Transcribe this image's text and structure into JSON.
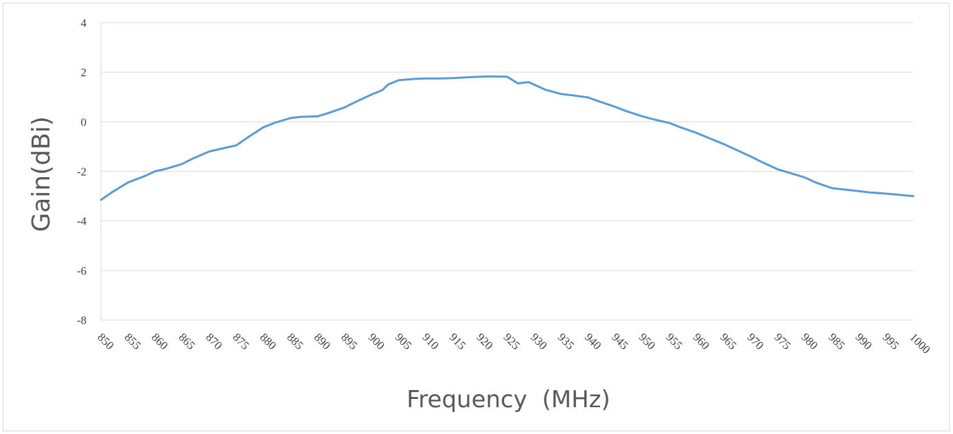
{
  "chart_data": {
    "type": "line",
    "title": "",
    "xlabel": "Frequency  (MHz)",
    "ylabel": "Gain(dBi)",
    "xlim": [
      850,
      1000
    ],
    "ylim": [
      -8,
      4
    ],
    "y_ticks": [
      "4",
      "2",
      "0",
      "-2",
      "-4",
      "-6",
      "-8"
    ],
    "y_tick_values": [
      4,
      2,
      0,
      -2,
      -4,
      -6,
      -8
    ],
    "x_ticks": [
      "850",
      "855",
      "860",
      "865",
      "870",
      "875",
      "880",
      "885",
      "890",
      "895",
      "900",
      "905",
      "910",
      "915",
      "920",
      "925",
      "930",
      "935",
      "940",
      "945",
      "950",
      "955",
      "960",
      "965",
      "970",
      "975",
      "980",
      "985",
      "990",
      "995",
      "1000"
    ],
    "x_tick_values": [
      850,
      855,
      860,
      865,
      870,
      875,
      880,
      885,
      890,
      895,
      900,
      905,
      910,
      915,
      920,
      925,
      930,
      935,
      940,
      945,
      950,
      955,
      960,
      965,
      970,
      975,
      980,
      985,
      990,
      995,
      1000
    ],
    "grid": true,
    "legend": "none",
    "series": [
      {
        "color": "#5b9bd5",
        "x": [
          850,
          852,
          855,
          858,
          860,
          862,
          865,
          867,
          870,
          872,
          875,
          877,
          880,
          882,
          885,
          887,
          890,
          892,
          895,
          897,
          900,
          902,
          903,
          905,
          908,
          910,
          913,
          915,
          918,
          920,
          922,
          925,
          927,
          929,
          930,
          932,
          935,
          937,
          940,
          942,
          945,
          947,
          950,
          952,
          955,
          957,
          960,
          962,
          965,
          967,
          970,
          972,
          975,
          977,
          980,
          982,
          985,
          987,
          990,
          992,
          995,
          997,
          1000
        ],
        "y": [
          -3.15,
          -2.85,
          -2.45,
          -2.2,
          -2.0,
          -1.9,
          -1.7,
          -1.48,
          -1.2,
          -1.1,
          -0.95,
          -0.65,
          -0.22,
          -0.05,
          0.15,
          0.2,
          0.22,
          0.35,
          0.58,
          0.8,
          1.1,
          1.28,
          1.5,
          1.68,
          1.73,
          1.75,
          1.75,
          1.76,
          1.8,
          1.82,
          1.83,
          1.82,
          1.55,
          1.6,
          1.5,
          1.3,
          1.12,
          1.07,
          0.98,
          0.82,
          0.6,
          0.43,
          0.22,
          0.1,
          -0.05,
          -0.22,
          -0.45,
          -0.63,
          -0.9,
          -1.1,
          -1.4,
          -1.62,
          -1.92,
          -2.05,
          -2.25,
          -2.45,
          -2.68,
          -2.73,
          -2.8,
          -2.85,
          -2.9,
          -2.94,
          -3.0
        ]
      }
    ]
  }
}
